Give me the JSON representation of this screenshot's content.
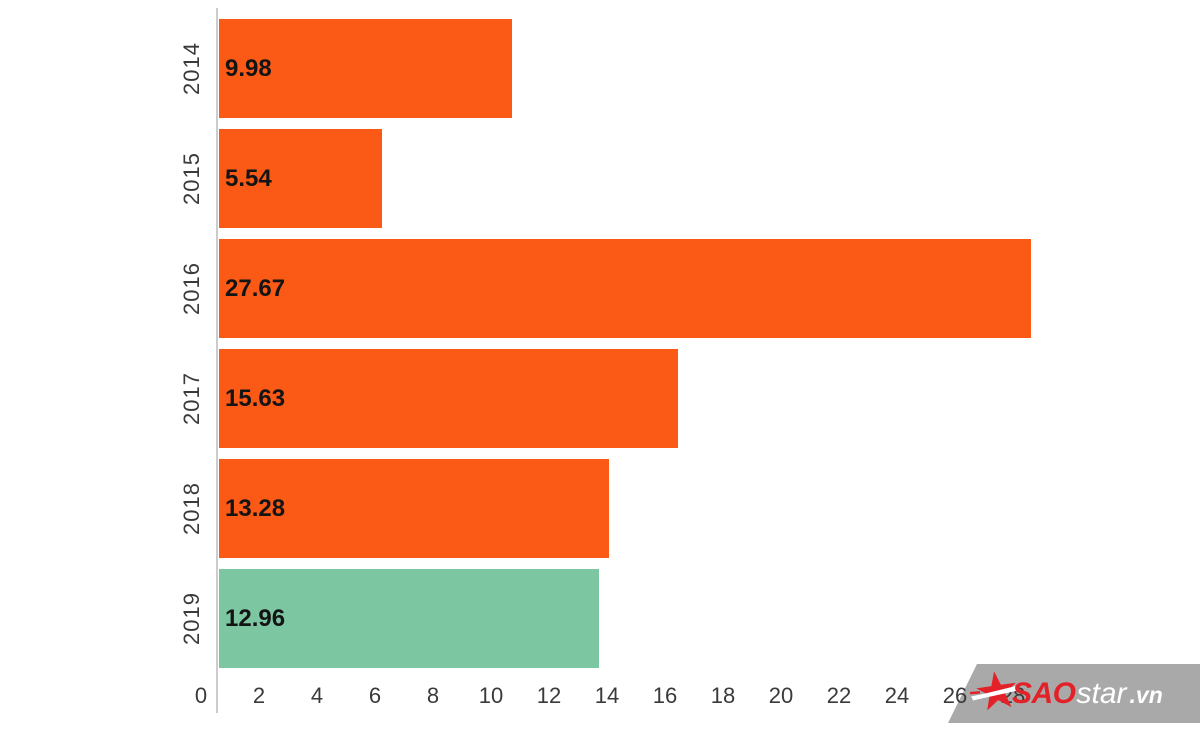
{
  "chart_data": {
    "type": "bar",
    "orientation": "horizontal",
    "title": "",
    "xlabel": "",
    "ylabel": "",
    "categories": [
      "2014",
      "2015",
      "2016",
      "2017",
      "2018",
      "2019"
    ],
    "values": [
      9.98,
      5.54,
      27.67,
      15.63,
      13.28,
      12.96
    ],
    "value_labels": [
      "9.98",
      "5.54",
      "27.67",
      "15.63",
      "13.28",
      "12.96"
    ],
    "bar_colors": [
      "#fa5a15",
      "#fa5a15",
      "#fa5a15",
      "#fa5a15",
      "#fa5a15",
      "#7cc6a1"
    ],
    "x_ticks": [
      "0",
      "2",
      "4",
      "6",
      "8",
      "10",
      "12",
      "14",
      "16",
      "18",
      "20",
      "22",
      "24",
      "26",
      "28"
    ],
    "x_tick_interval": 2,
    "xlim": [
      0,
      28
    ],
    "grid": false,
    "legend": false,
    "value_labels_position": "inside-start",
    "category_labels_rotated": true
  },
  "colors": {
    "background": "#ffffff",
    "bar_orange": "#fa5a15",
    "bar_green": "#7cc6a1",
    "axis_line": "#cccccc",
    "tick_text": "#3a3a3a",
    "value_text": "#141414",
    "watermark_bg": "#a9a9a9",
    "watermark_red": "#e32128",
    "watermark_white": "#ffffff"
  },
  "watermark": {
    "brand_prefix": "SAO",
    "brand_middle": "star",
    "brand_suffix": ".vn"
  }
}
